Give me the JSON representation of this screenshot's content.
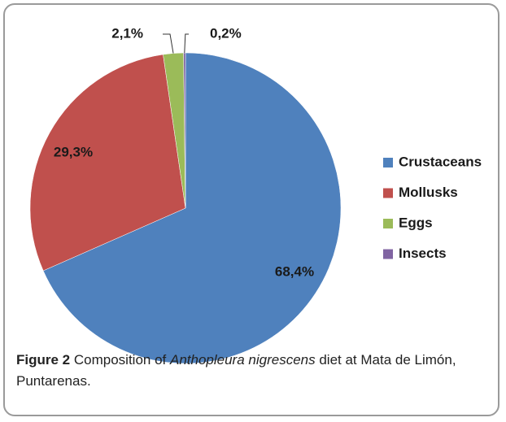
{
  "chart_data": {
    "type": "pie",
    "categories": [
      "Crustaceans",
      "Mollusks",
      "Eggs",
      "Insects"
    ],
    "values": [
      68.4,
      29.3,
      2.1,
      0.2
    ],
    "value_labels": [
      "68,4%",
      "29,3%",
      "2,1%",
      "0,2%"
    ],
    "colors": [
      "#4f81bd",
      "#c0504d",
      "#9bbb59",
      "#8064a2"
    ],
    "legend": "right"
  },
  "caption": {
    "label": "Figure 2",
    "before": "Composition of",
    "species": "Anthopleura nigrescens",
    "after": "diet at Mata de Limón, Puntarenas."
  }
}
